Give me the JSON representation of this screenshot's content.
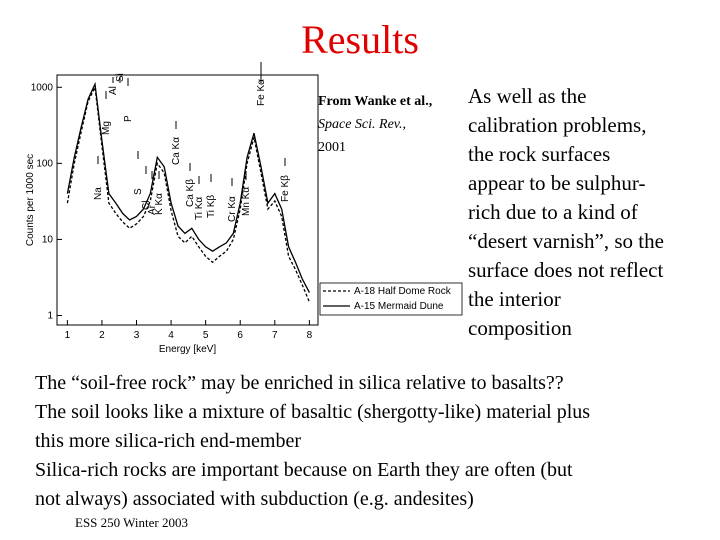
{
  "title": "Results",
  "citation": {
    "line1": "From Wanke et al.,",
    "journal": "Space Sci. Rev.,",
    "year": "2001"
  },
  "side_text": [
    "As well as the",
    "calibration problems,",
    "the rock surfaces",
    "appear to be sulphur-",
    "rich due to a kind of",
    "“desert varnish”, so the",
    "surface does not reflect",
    "the interior",
    "composition"
  ],
  "body_text": [
    "The “soil-free rock” may be enriched in silica relative to basalts??",
    "The soil looks like a mixture of basaltic (shergotty-like) material plus",
    "this more silica-rich end-member",
    "Silica-rich rocks are important because on Earth they are often (but",
    "not always) associated with subduction (e.g. andesites)"
  ],
  "footer": "ESS 250 Winter 2003",
  "chart_data": {
    "type": "line",
    "xlabel": "Energy [keV]",
    "ylabel": "Counts per 1000 sec",
    "x": [
      1.0,
      1.2,
      1.4,
      1.6,
      1.8,
      2.0,
      2.2,
      2.4,
      2.6,
      2.8,
      3.0,
      3.2,
      3.4,
      3.6,
      3.8,
      4.0,
      4.2,
      4.4,
      4.6,
      4.8,
      5.0,
      5.2,
      5.4,
      5.6,
      5.8,
      6.0,
      6.2,
      6.4,
      6.6,
      6.8,
      7.0,
      7.2,
      7.4,
      7.6,
      7.8,
      8.0
    ],
    "series": [
      {
        "name": "A-18 Half Dome Rock",
        "color": "#000000",
        "style": "dashed",
        "values": [
          30,
          100,
          260,
          650,
          1000,
          170,
          30,
          22,
          17,
          14,
          16,
          20,
          32,
          100,
          75,
          24,
          11,
          9,
          11,
          8,
          6,
          5,
          6,
          7,
          10,
          25,
          100,
          220,
          75,
          25,
          32,
          20,
          6,
          4,
          2.5,
          1.5
        ]
      },
      {
        "name": "A-15 Mermaid Dune",
        "color": "#000000",
        "style": "solid",
        "values": [
          40,
          120,
          300,
          700,
          1100,
          200,
          40,
          30,
          22,
          18,
          20,
          25,
          40,
          120,
          90,
          30,
          15,
          12,
          14,
          10,
          8,
          7,
          8,
          9,
          12,
          30,
          120,
          250,
          90,
          30,
          40,
          25,
          8,
          5,
          3,
          2
        ]
      }
    ],
    "xlim": [
      0.7,
      8.25
    ],
    "xticks": [
      1,
      2,
      3,
      4,
      5,
      6,
      7,
      8
    ],
    "ylim": [
      0.75,
      1450
    ],
    "yticks": [
      1,
      10,
      100,
      1000
    ],
    "log_y": true,
    "element_labels": [
      "Na",
      "Mg",
      "Al",
      "Si",
      "P",
      "S",
      "Cl",
      "Ar",
      "K Kα",
      "Ca Kα",
      "Ca Kβ",
      "Ti Kα",
      "Ti Kβ",
      "Cr Kα",
      "Mn Kα",
      "Fe Kα",
      "Fe Kβ"
    ]
  }
}
